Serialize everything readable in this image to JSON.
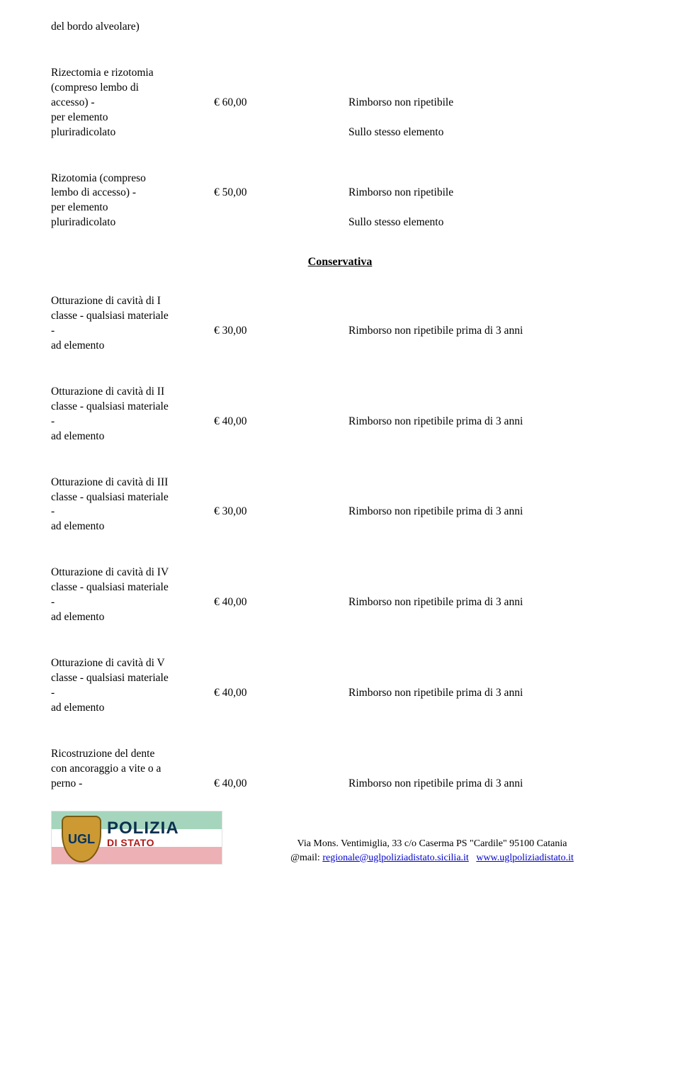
{
  "top_fragment": "del bordo alveolare)",
  "items": {
    "rizectomia": {
      "l1": "Rizectomia e rizotomia",
      "l2": "(compreso lembo di",
      "l3": "accesso) -",
      "price": "€ 60,00",
      "r1": "Rimborso non ripetibile",
      "l4": "per elemento",
      "l5": "pluriradicolato",
      "r2": "Sullo stesso elemento"
    },
    "rizotomia": {
      "l1": "Rizotomia (compreso",
      "l2": "lembo di accesso)  -",
      "price": "€ 50,00",
      "r1": "Rimborso non ripetibile",
      "l3": "per elemento",
      "l4": "pluriradicolato",
      "r2": "Sullo stesso elemento"
    },
    "ott1": {
      "l1": "Otturazione di cavità di I",
      "l2": "classe - qualsiasi materiale",
      "l3": "-",
      "price": "€ 30,00",
      "r": "Rimborso non ripetibile prima di 3 anni",
      "l4": "ad elemento"
    },
    "ott2": {
      "l1": "Otturazione di cavità di II",
      "l2": "classe - qualsiasi materiale",
      "l3": "-",
      "price": "€ 40,00",
      "r": "Rimborso non ripetibile prima di 3 anni",
      "l4": "ad elemento"
    },
    "ott3": {
      "l1": "Otturazione di cavità di III",
      "l2": "classe - qualsiasi materiale",
      "l3": "-",
      "price": "€ 30,00",
      "r": "Rimborso non ripetibile prima di 3 anni",
      "l4": "ad elemento"
    },
    "ott4": {
      "l1": "Otturazione di cavità di IV",
      "l2": "classe - qualsiasi materiale",
      "l3": "-",
      "price": "€ 40,00",
      "r": "Rimborso non ripetibile prima di 3 anni",
      "l4": "ad elemento"
    },
    "ott5": {
      "l1": "Otturazione di cavità di V",
      "l2": "classe - qualsiasi materiale",
      "l3": "-",
      "price": "€ 40,00",
      "r": "Rimborso non ripetibile prima di 3 anni",
      "l4": "ad elemento"
    },
    "ricostruzione": {
      "l1": "Ricostruzione del dente",
      "l2": "con ancoraggio a vite o a",
      "l3": "perno -",
      "price": "€ 40,00",
      "r": "Rimborso non ripetibile prima di 3 anni"
    }
  },
  "section_title": "Conservativa",
  "footer": {
    "line1_pre": "Via Mons. Ventimiglia, 33 c/o Caserma PS \"Cardile\" 95100 Catania",
    "mail_label": "@mail:",
    "mail": "regionale@uglpoliziadistato.sicilia.it",
    "site": "www.uglpoliziadistato.it",
    "logo_ugl": "UGL",
    "logo_polizia": "POLIZIA",
    "logo_stato": "DI STATO"
  }
}
